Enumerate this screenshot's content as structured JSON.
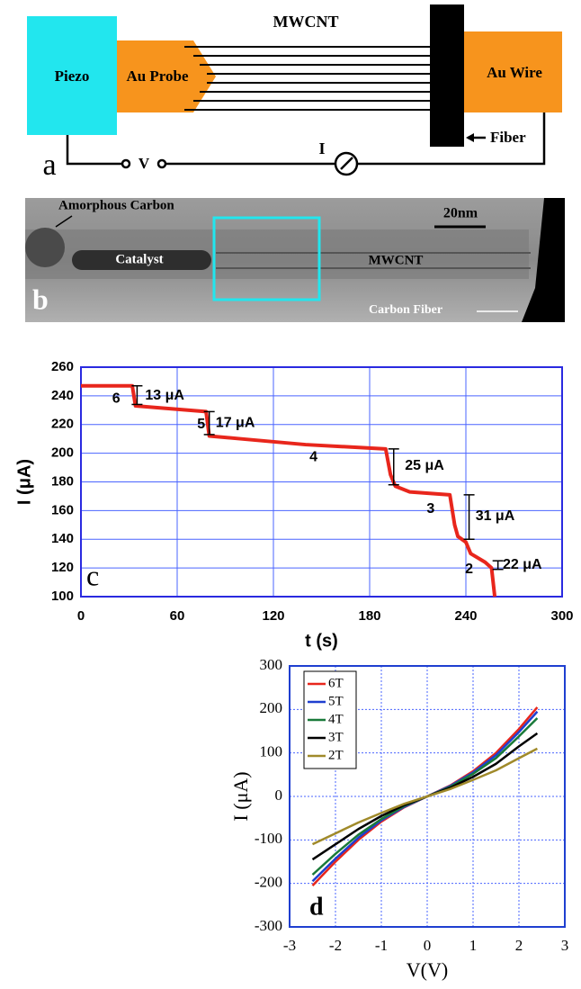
{
  "panel_a": {
    "label": "a",
    "piezo": "Piezo",
    "probe": "Au Probe",
    "mwcnt": "MWCNT",
    "wire": "Au Wire",
    "fiber": "Fiber",
    "voltage": "V",
    "current": "I"
  },
  "panel_b": {
    "label": "b",
    "amorphous": "Amorphous Carbon",
    "catalyst": "Catalyst",
    "mwcnt": "MWCNT",
    "scale": "20nm",
    "fiber": "Carbon Fiber"
  },
  "chart_data": [
    {
      "type": "line",
      "panel_label": "c",
      "x_label": "t (s)",
      "y_label": "I (μA)",
      "color": "#e8261c",
      "x": [
        0,
        32,
        34,
        45,
        78,
        80,
        100,
        140,
        190,
        193,
        196,
        205,
        230,
        233,
        235,
        240,
        243,
        252,
        256,
        258
      ],
      "values": [
        247,
        247,
        233,
        232,
        229,
        212,
        210,
        206,
        203,
        185,
        177,
        173,
        171,
        150,
        142,
        138,
        130,
        124,
        120,
        100
      ],
      "xlim": [
        0,
        300
      ],
      "xticks": [
        0,
        60,
        120,
        180,
        240,
        300
      ],
      "ylim": [
        100,
        260
      ],
      "yticks": [
        100,
        120,
        140,
        160,
        180,
        200,
        220,
        240,
        260
      ],
      "grid": true,
      "annotations": [
        "6",
        "5",
        "4",
        "3",
        "2",
        "13 μA",
        "17 μA",
        "25 μA",
        "31 μA",
        "22 μA"
      ]
    },
    {
      "type": "line",
      "panel_label": "d",
      "x_label": "V(V)",
      "y_label": "I (μA)",
      "legend": "upper left",
      "x": [
        -2.5,
        -2,
        -1.5,
        -1,
        -0.5,
        0,
        0.5,
        1,
        1.5,
        2,
        2.4
      ],
      "series": [
        {
          "name": "6T",
          "color": "#e8261c",
          "values": [
            -205,
            -150,
            -100,
            -58,
            -25,
            0,
            25,
            58,
            100,
            155,
            205
          ]
        },
        {
          "name": "5T",
          "color": "#1f3fd0",
          "values": [
            -195,
            -143,
            -95,
            -55,
            -24,
            0,
            24,
            55,
            95,
            148,
            195
          ]
        },
        {
          "name": "4T",
          "color": "#1a7a3a",
          "values": [
            -180,
            -132,
            -88,
            -52,
            -22,
            0,
            22,
            52,
            88,
            138,
            180
          ]
        },
        {
          "name": "3T",
          "color": "#000000",
          "values": [
            -145,
            -110,
            -75,
            -45,
            -20,
            0,
            20,
            45,
            75,
            115,
            145
          ]
        },
        {
          "name": "2T",
          "color": "#a08a2a",
          "values": [
            -110,
            -85,
            -60,
            -38,
            -17,
            0,
            17,
            38,
            60,
            88,
            110
          ]
        }
      ],
      "xlim": [
        -3,
        3
      ],
      "xticks": [
        -3,
        -2,
        -1,
        0,
        1,
        2,
        3
      ],
      "ylim": [
        -300,
        300
      ],
      "yticks": [
        -300,
        -200,
        -100,
        0,
        100,
        200,
        300
      ],
      "grid": true
    }
  ]
}
